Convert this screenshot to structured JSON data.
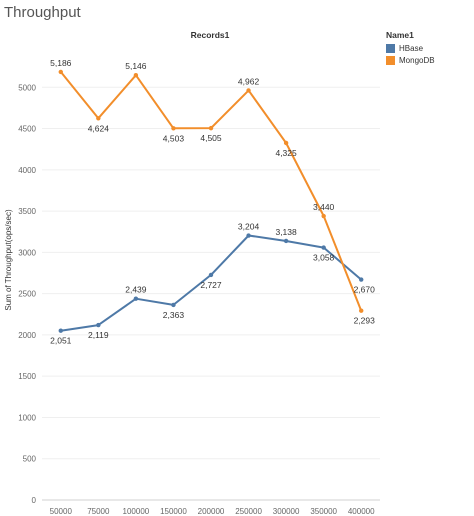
{
  "sheet_title": "Throughput",
  "legend": {
    "title": "Name1",
    "items": [
      {
        "label": "HBase",
        "color": "#4e79a7"
      },
      {
        "label": "MongoDB",
        "color": "#f28e2b"
      }
    ]
  },
  "chart_data": {
    "type": "line",
    "title": "Records1",
    "xlabel": "",
    "ylabel": "Sum of Throughput(ops/sec)",
    "x": [
      "50000",
      "75000",
      "100000",
      "150000",
      "200000",
      "250000",
      "300000",
      "350000",
      "400000"
    ],
    "ylim": [
      0,
      5500
    ],
    "yticks": [
      "0",
      "500",
      "1000",
      "1500",
      "2000",
      "2500",
      "3000",
      "3500",
      "4000",
      "4500",
      "5000"
    ],
    "series": [
      {
        "name": "HBase",
        "color": "#4e79a7",
        "values": [
          2051,
          2119,
          2439,
          2363,
          2727,
          3204,
          3138,
          3058,
          2670
        ],
        "labels": [
          "2,051",
          "2,119",
          "2,439",
          "2,363",
          "2,727",
          "3,204",
          "3,138",
          "3,058",
          "2,670"
        ]
      },
      {
        "name": "MongoDB",
        "color": "#f28e2b",
        "values": [
          5186,
          4624,
          5146,
          4503,
          4505,
          4962,
          4325,
          3440,
          2293
        ],
        "labels": [
          "5,186",
          "4,624",
          "5,146",
          "4,503",
          "4,505",
          "4,962",
          "4,325",
          "3,440",
          "2,293"
        ]
      }
    ],
    "grid": "horizontal",
    "legend_position": "right"
  }
}
